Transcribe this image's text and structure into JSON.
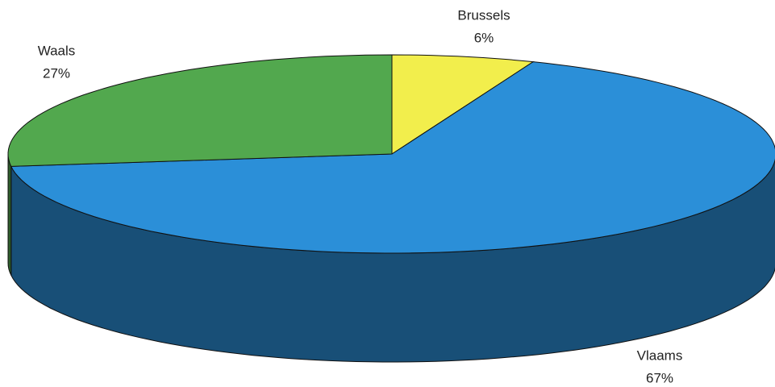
{
  "chart_data": {
    "type": "pie3d",
    "categories": [
      "Brussels",
      "Vlaams",
      "Waals"
    ],
    "values": [
      6,
      67,
      27
    ],
    "value_labels": [
      "6%",
      "67%",
      "27%"
    ],
    "colors": [
      "#f2ee4c",
      "#2b8fd8",
      "#52a84e"
    ]
  }
}
